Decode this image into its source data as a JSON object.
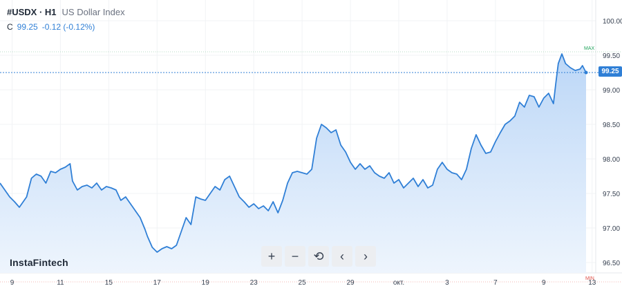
{
  "header": {
    "symbol": "#USDX · H1",
    "description": "US Dollar Index",
    "close_label": "C",
    "close_value": "99.25",
    "change": "-0.12 (-0.12%)"
  },
  "brand": "InstaFintech",
  "toolbar": {
    "zoom_in": "+",
    "zoom_out": "−",
    "reset": "⟲",
    "prev": "‹",
    "next": "›"
  },
  "price_tag": "99.25",
  "markers": {
    "max_label": "MAX",
    "min_label": "MIN"
  },
  "colors": {
    "line": "#2f7fd6",
    "fill_top": "#bcd7f7",
    "fill_bottom": "#eef5fd",
    "max": "#22a45d",
    "min": "#e0524a"
  },
  "chart_data": {
    "type": "area",
    "ylim": [
      96.35,
      100.3
    ],
    "y_ticks": [
      "100.00",
      "99.50",
      "99.00",
      "98.50",
      "98.00",
      "97.50",
      "97.00",
      "96.50"
    ],
    "x_ticks": [
      {
        "label": "9",
        "x": 0.6
      },
      {
        "label": "11",
        "x": 2.6
      },
      {
        "label": "15",
        "x": 4.6
      },
      {
        "label": "17",
        "x": 6.6
      },
      {
        "label": "19",
        "x": 8.6
      },
      {
        "label": "23",
        "x": 10.6
      },
      {
        "label": "25",
        "x": 12.6
      },
      {
        "label": "29",
        "x": 14.6
      },
      {
        "label": "окт.",
        "x": 16.6
      },
      {
        "label": "3",
        "x": 18.6
      },
      {
        "label": "7",
        "x": 20.6
      },
      {
        "label": "9",
        "x": 22.6
      },
      {
        "label": "13",
        "x": 24.6
      }
    ],
    "x_range": [
      0.1,
      24.75
    ],
    "max_value": 99.55,
    "min_value": 96.22,
    "last_value": 99.25,
    "series": [
      {
        "values": [
          [
            0.1,
            97.65
          ],
          [
            0.3,
            97.55
          ],
          [
            0.5,
            97.45
          ],
          [
            0.7,
            97.38
          ],
          [
            0.9,
            97.3
          ],
          [
            1.0,
            97.35
          ],
          [
            1.2,
            97.45
          ],
          [
            1.4,
            97.72
          ],
          [
            1.6,
            97.78
          ],
          [
            1.8,
            97.75
          ],
          [
            2.0,
            97.65
          ],
          [
            2.2,
            97.82
          ],
          [
            2.4,
            97.8
          ],
          [
            2.6,
            97.85
          ],
          [
            2.8,
            97.88
          ],
          [
            3.0,
            97.93
          ],
          [
            3.1,
            97.68
          ],
          [
            3.3,
            97.55
          ],
          [
            3.5,
            97.6
          ],
          [
            3.7,
            97.62
          ],
          [
            3.9,
            97.58
          ],
          [
            4.1,
            97.65
          ],
          [
            4.3,
            97.55
          ],
          [
            4.5,
            97.6
          ],
          [
            4.7,
            97.58
          ],
          [
            4.9,
            97.55
          ],
          [
            5.1,
            97.4
          ],
          [
            5.3,
            97.45
          ],
          [
            5.5,
            97.35
          ],
          [
            5.7,
            97.25
          ],
          [
            5.9,
            97.15
          ],
          [
            6.1,
            96.98
          ],
          [
            6.2,
            96.88
          ],
          [
            6.4,
            96.72
          ],
          [
            6.6,
            96.65
          ],
          [
            6.8,
            96.7
          ],
          [
            7.0,
            96.73
          ],
          [
            7.2,
            96.7
          ],
          [
            7.4,
            96.75
          ],
          [
            7.6,
            96.95
          ],
          [
            7.8,
            97.15
          ],
          [
            8.0,
            97.05
          ],
          [
            8.2,
            97.45
          ],
          [
            8.4,
            97.42
          ],
          [
            8.6,
            97.4
          ],
          [
            8.8,
            97.5
          ],
          [
            9.0,
            97.6
          ],
          [
            9.2,
            97.55
          ],
          [
            9.4,
            97.7
          ],
          [
            9.6,
            97.75
          ],
          [
            9.8,
            97.6
          ],
          [
            10.0,
            97.45
          ],
          [
            10.2,
            97.38
          ],
          [
            10.4,
            97.3
          ],
          [
            10.6,
            97.35
          ],
          [
            10.8,
            97.28
          ],
          [
            11.0,
            97.32
          ],
          [
            11.2,
            97.25
          ],
          [
            11.4,
            97.38
          ],
          [
            11.6,
            97.22
          ],
          [
            11.8,
            97.4
          ],
          [
            12.0,
            97.65
          ],
          [
            12.2,
            97.8
          ],
          [
            12.4,
            97.82
          ],
          [
            12.6,
            97.8
          ],
          [
            12.8,
            97.78
          ],
          [
            13.0,
            97.85
          ],
          [
            13.2,
            98.3
          ],
          [
            13.4,
            98.5
          ],
          [
            13.6,
            98.45
          ],
          [
            13.8,
            98.38
          ],
          [
            14.0,
            98.42
          ],
          [
            14.2,
            98.2
          ],
          [
            14.4,
            98.1
          ],
          [
            14.6,
            97.95
          ],
          [
            14.8,
            97.85
          ],
          [
            15.0,
            97.93
          ],
          [
            15.2,
            97.85
          ],
          [
            15.4,
            97.9
          ],
          [
            15.6,
            97.8
          ],
          [
            15.8,
            97.75
          ],
          [
            16.0,
            97.72
          ],
          [
            16.2,
            97.8
          ],
          [
            16.4,
            97.65
          ],
          [
            16.6,
            97.7
          ],
          [
            16.8,
            97.58
          ],
          [
            17.0,
            97.65
          ],
          [
            17.2,
            97.72
          ],
          [
            17.4,
            97.6
          ],
          [
            17.6,
            97.7
          ],
          [
            17.8,
            97.58
          ],
          [
            18.0,
            97.62
          ],
          [
            18.2,
            97.85
          ],
          [
            18.4,
            97.95
          ],
          [
            18.6,
            97.85
          ],
          [
            18.8,
            97.8
          ],
          [
            19.0,
            97.78
          ],
          [
            19.2,
            97.7
          ],
          [
            19.4,
            97.85
          ],
          [
            19.6,
            98.15
          ],
          [
            19.8,
            98.35
          ],
          [
            20.0,
            98.2
          ],
          [
            20.2,
            98.08
          ],
          [
            20.4,
            98.1
          ],
          [
            20.6,
            98.25
          ],
          [
            20.8,
            98.38
          ],
          [
            21.0,
            98.5
          ],
          [
            21.2,
            98.55
          ],
          [
            21.4,
            98.62
          ],
          [
            21.6,
            98.82
          ],
          [
            21.8,
            98.75
          ],
          [
            22.0,
            98.92
          ],
          [
            22.2,
            98.9
          ],
          [
            22.4,
            98.75
          ],
          [
            22.6,
            98.88
          ],
          [
            22.8,
            98.95
          ],
          [
            23.0,
            98.8
          ],
          [
            23.1,
            99.1
          ],
          [
            23.2,
            99.38
          ],
          [
            23.35,
            99.52
          ],
          [
            23.5,
            99.38
          ],
          [
            23.7,
            99.32
          ],
          [
            23.9,
            99.28
          ],
          [
            24.1,
            99.3
          ],
          [
            24.2,
            99.35
          ],
          [
            24.35,
            99.25
          ]
        ]
      }
    ]
  }
}
